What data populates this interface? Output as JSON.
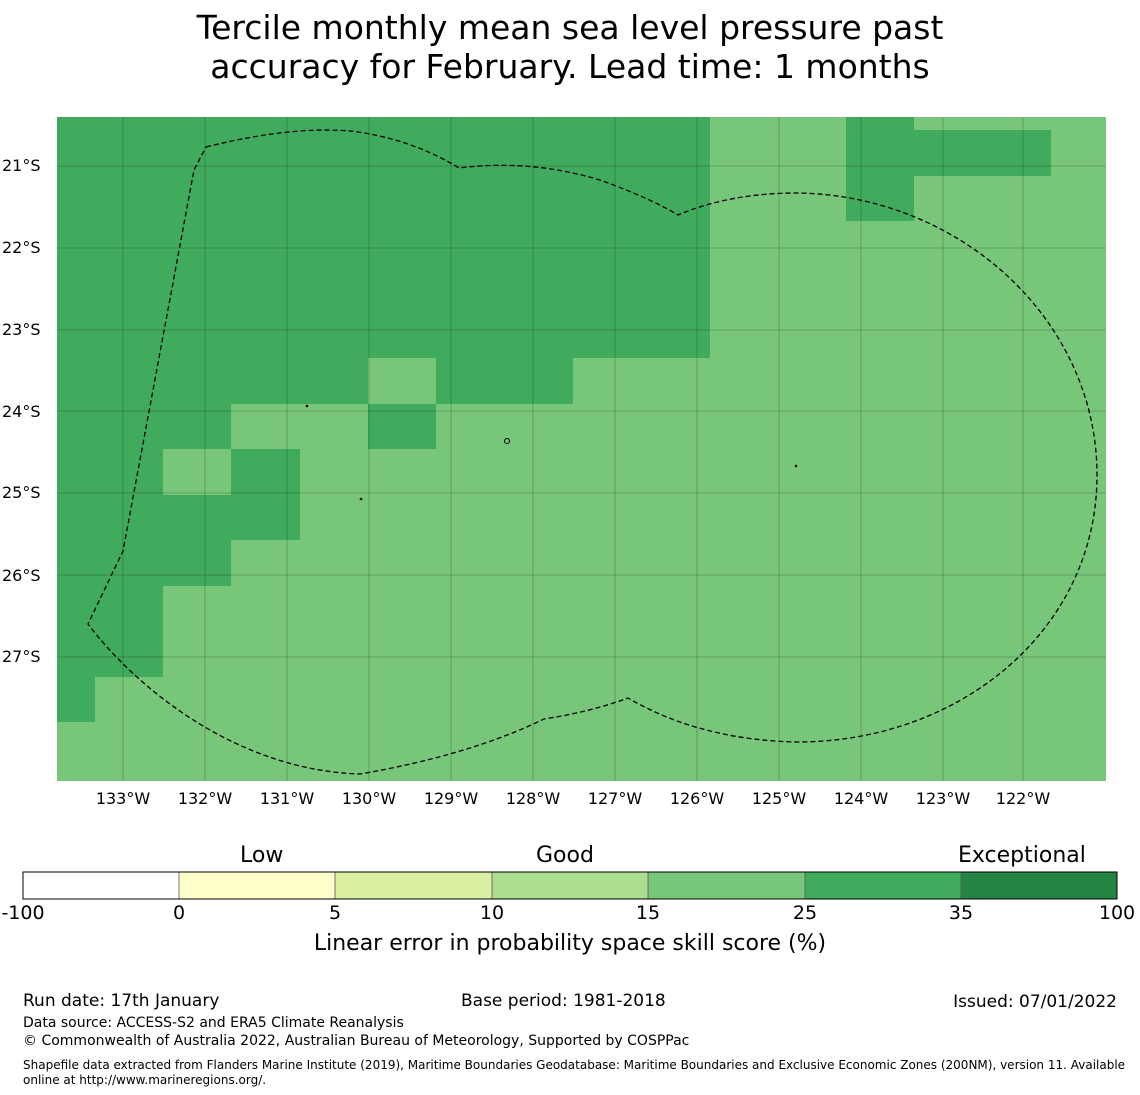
{
  "title_line1": "Tercile monthly mean sea level pressure past",
  "title_line2": "accuracy for February. Lead time: 1 months",
  "map": {
    "latitude_labels": [
      "21°S",
      "22°S",
      "23°S",
      "24°S",
      "25°S",
      "26°S",
      "27°S"
    ],
    "longitude_labels": [
      "133°W",
      "132°W",
      "131°W",
      "130°W",
      "129°W",
      "128°W",
      "127°W",
      "126°W",
      "125°W",
      "124°W",
      "123°W",
      "122°W"
    ],
    "colors": {
      "band_15_25": "#78c679",
      "band_25_35": "#41ab5d"
    },
    "skill_regions": [
      {
        "band": "25-35",
        "area": "north-west block, 133.8°W–125.9°W, 20.6°S–23.3°S"
      },
      {
        "band": "25-35",
        "area": "western coastal strip, 133.8°W–130.8°W, down to 23.9°S"
      },
      {
        "band": "25-35",
        "area": "stepped strip along western edge, 133.8°W–131.7°W, down to 27.7°S"
      },
      {
        "band": "25-35",
        "area": "small cells near 124°W, 20.6°S–21.7°S"
      },
      {
        "band": "15-25",
        "area": "remainder of domain"
      }
    ]
  },
  "colorbar": {
    "categories": [
      "Low",
      "Good",
      "Exceptional"
    ],
    "ticks": [
      "-100",
      "0",
      "5",
      "10",
      "15",
      "25",
      "35",
      "100"
    ],
    "colors": [
      "#ffffff",
      "#ffffcc",
      "#d9f0a3",
      "#addd8e",
      "#78c679",
      "#41ab5d",
      "#238443"
    ],
    "label": "Linear error in probability space skill score (%)"
  },
  "footer": {
    "run_date": "Run date: 17th January",
    "base_period": "Base period: 1981-2018",
    "issued": "Issued: 07/01/2022",
    "data_source": "Data source: ACCESS-S2 and ERA5 Climate Reanalysis",
    "copyright": "© Commonwealth of Australia 2022, Australian Bureau of Meteorology, Supported by COSPPac",
    "shapefile": "Shapefile data extracted from Flanders Marine Institute (2019), Maritime Boundaries Geodatabase: Maritime Boundaries and Exclusive Economic Zones (200NM), version 11. Available online at http://www.marineregions.org/."
  }
}
